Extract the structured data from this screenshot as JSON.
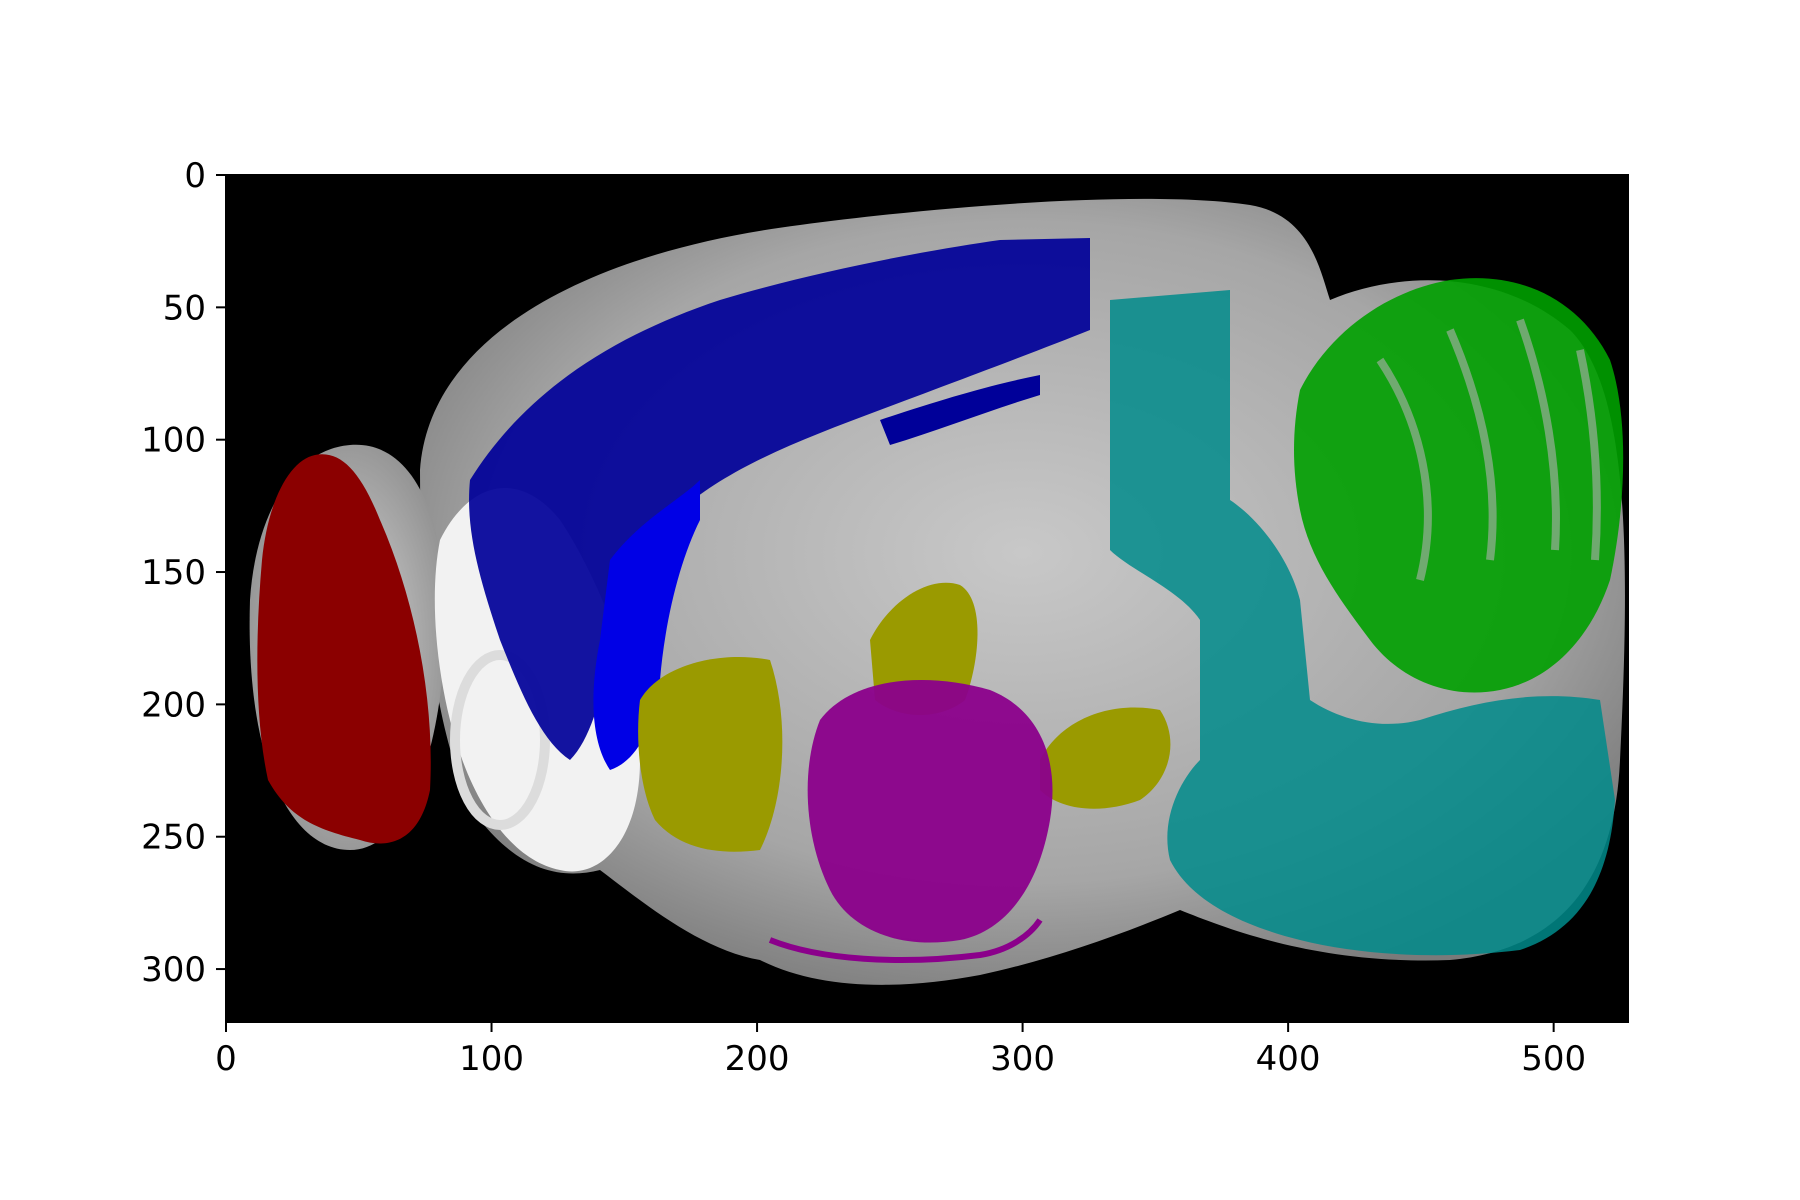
{
  "chart_data": {
    "type": "heatmap",
    "title": "",
    "xlabel": "",
    "ylabel": "",
    "xlim": [
      0,
      528
    ],
    "ylim": [
      320,
      0
    ],
    "x_ticks": [
      "0",
      "100",
      "200",
      "300",
      "400",
      "500"
    ],
    "y_ticks": [
      "0",
      "50",
      "100",
      "150",
      "200",
      "250",
      "300"
    ],
    "background": "grayscale image (sagittal brain section)",
    "overlay_colors": {
      "red": "#8b0000",
      "blue": "#0000c8",
      "yellow": "#b4b400",
      "magenta": "#8b008b",
      "cyan": "#008b8b",
      "green": "#00b400"
    }
  }
}
